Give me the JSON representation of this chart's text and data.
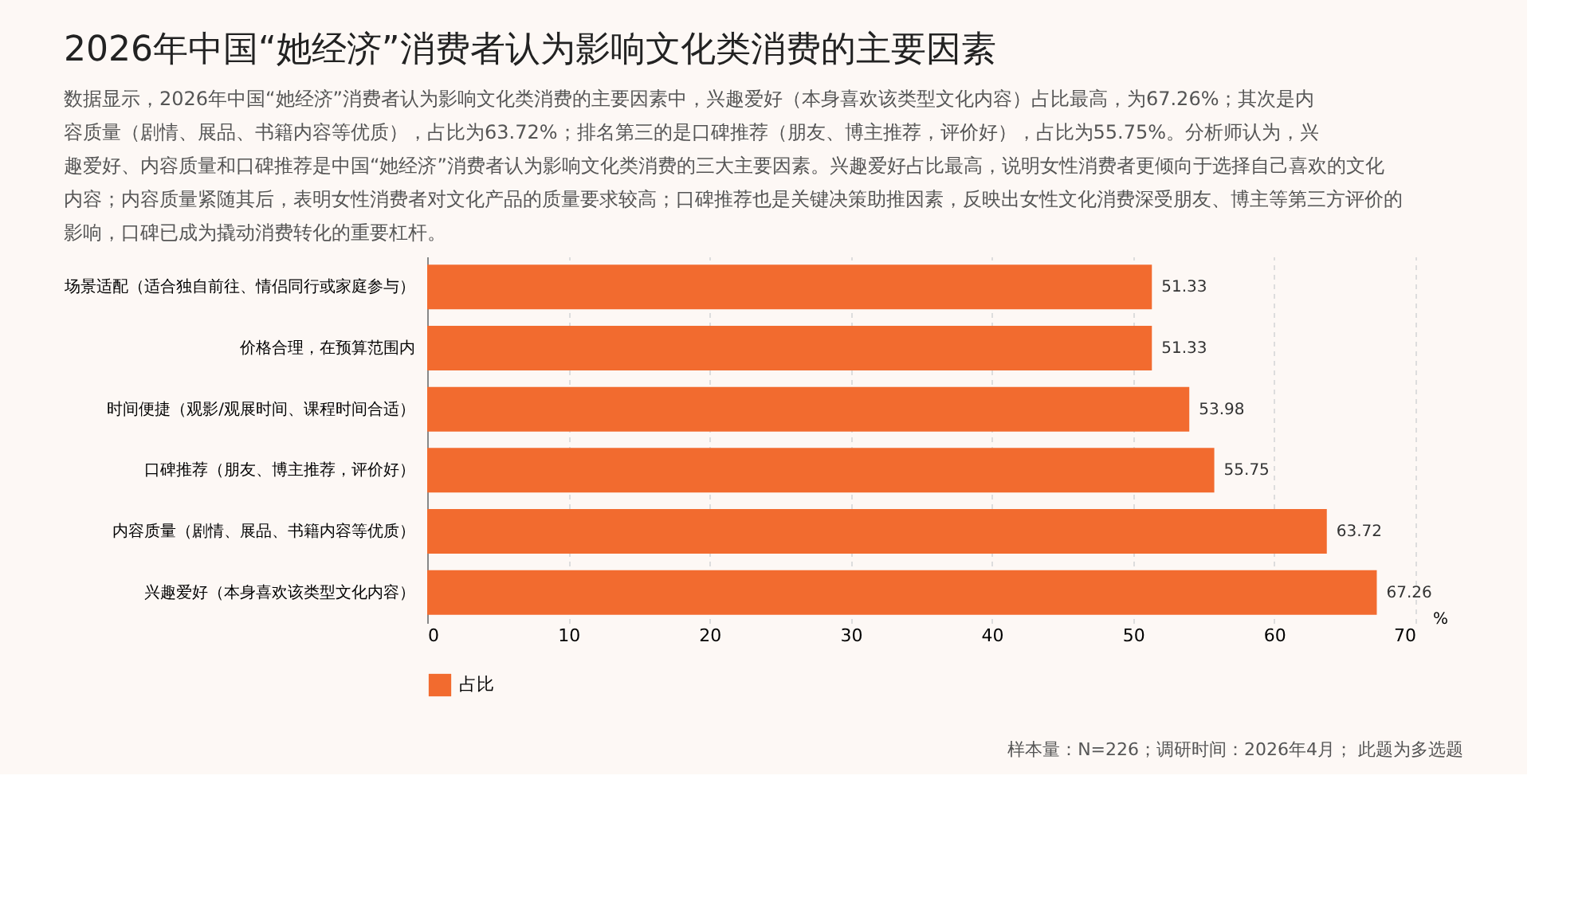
{
  "chart_data": {
    "type": "bar",
    "orientation": "horizontal",
    "title": "2026年中国“她经济”消费者认为影响文化类消费的主要因素",
    "subtitle": "数据显示，2026年中国“她经济”消费者认为影响文化类消费的主要因素中，兴趣爱好（本身喜欢该类型文化内容）占比最高，为67.26%；其次是内容质量（剧情、展品、书籍内容等优质），占比为63.72%；排名第三的是口碑推荐（朋友、博主推荐，评价好），占比为55.75%。分析师认为，兴趣爱好、内容质量和口碑推荐是中国“她经济”消费者认为影响文化类消费的三大主要因素。兴趣爱好占比最高，说明女性消费者更倾向于选择自己喜欢的文化内容；内容质量紧随其后，表明女性消费者对文化产品的质量要求较高；口碑推荐也是关键决策助推因素，反映出女性文化消费深受朋友、博主等第三方评价的影响，口碑已成为撬动消费转化的重要杠杆。",
    "categories": [
      "场景适配（适合独自前往、情侣同行或家庭参与）",
      "价格合理，在预算范围内",
      "时间便捷（观影/观展时间、课程时间合适）",
      "口碑推荐（朋友、博主推荐，评价好）",
      "内容质量（剧情、展品、书籍内容等优质）",
      "兴趣爱好（本身喜欢该类型文化内容）"
    ],
    "series": [
      {
        "name": "占比",
        "color": "#f26b2f",
        "values": [
          51.33,
          51.33,
          53.98,
          55.75,
          63.72,
          67.26
        ]
      }
    ],
    "xlabel": "%",
    "xlim": [
      0,
      70
    ],
    "xticks": [
      0,
      10,
      20,
      30,
      40,
      50,
      60,
      70
    ],
    "data_labels": true,
    "legend": "bottom",
    "grid": "x",
    "annotations": [
      "样本量：N=226；调研时间：2026年4月； 此题为多选题"
    ]
  }
}
